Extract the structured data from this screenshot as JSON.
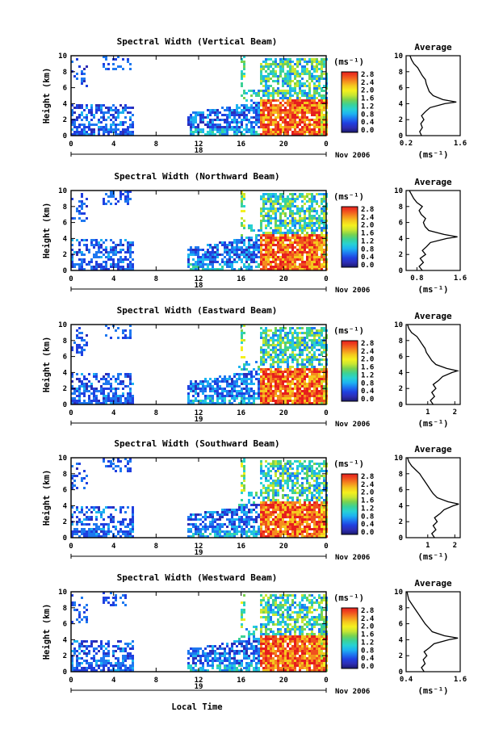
{
  "figure": {
    "xlabel": "Local Time",
    "date_label": "Nov 2006",
    "colorbar_unit": "(ms⁻¹)",
    "colorbar_ticks": [
      "0.0",
      "0.4",
      "0.8",
      "1.2",
      "1.6",
      "2.0",
      "2.4",
      "2.8"
    ],
    "avg_title": "Average",
    "avg_unit": "(ms⁻¹)",
    "ylabel": "Height (km)",
    "colorscale": [
      "#1a1a6e",
      "#2d2db4",
      "#2040e0",
      "#1e78f0",
      "#1eb4f0",
      "#28d2d2",
      "#3cd296",
      "#78d250",
      "#c8e632",
      "#f5f01e",
      "#f5c81e",
      "#f58c1e",
      "#f0501e",
      "#e61e1e"
    ]
  },
  "chart_data": [
    {
      "type": "heatmap",
      "title": "Spectral Width (Vertical Beam)",
      "xlabel": "Local Time",
      "ylabel": "Height (km)",
      "x_ticks": [
        "0",
        "4",
        "8",
        "12",
        "16",
        "20",
        "0"
      ],
      "x_range": [
        0,
        24
      ],
      "y_range": [
        0,
        10
      ],
      "y_ticks": [
        "0",
        "2",
        "4",
        "6",
        "8",
        "10"
      ],
      "day_label": "18",
      "z_unit": "(ms⁻¹)",
      "z_range": [
        0,
        2.8
      ],
      "average_profile": {
        "title": "Average",
        "xlabel": "(ms⁻¹)",
        "x_ticks": [
          "0.2",
          "1.6"
        ],
        "x_range": [
          0.2,
          1.6
        ],
        "heights": [
          0,
          0.5,
          1,
          1.5,
          2,
          2.5,
          3,
          3.5,
          4,
          4.2,
          4.5,
          5,
          5.5,
          6,
          6.5,
          7,
          7.5,
          8,
          8.5,
          9,
          9.5,
          10
        ],
        "values": [
          0.6,
          0.55,
          0.62,
          0.58,
          0.66,
          0.6,
          0.7,
          0.82,
          1.2,
          1.5,
          1.15,
          0.9,
          0.8,
          0.76,
          0.72,
          0.7,
          0.62,
          0.56,
          0.5,
          0.4,
          0.34,
          0.3
        ]
      }
    },
    {
      "type": "heatmap",
      "title": "Spectral Width (Northward Beam)",
      "xlabel": "Local Time",
      "ylabel": "Height (km)",
      "x_ticks": [
        "0",
        "4",
        "8",
        "12",
        "16",
        "20",
        "0"
      ],
      "x_range": [
        0,
        24
      ],
      "y_range": [
        0,
        10
      ],
      "y_ticks": [
        "0",
        "2",
        "4",
        "6",
        "8",
        "10"
      ],
      "day_label": "18",
      "z_unit": "(ms⁻¹)",
      "z_range": [
        0,
        2.8
      ],
      "average_profile": {
        "title": "Average",
        "xlabel": "(ms⁻¹)",
        "x_ticks": [
          "0.8",
          "1.6"
        ],
        "x_range": [
          0.6,
          1.6
        ],
        "heights": [
          0,
          0.5,
          1,
          1.5,
          2,
          2.5,
          3,
          3.5,
          4,
          4.2,
          4.5,
          5,
          5.5,
          6,
          6.5,
          7,
          7.5,
          8,
          8.5,
          9,
          9.5,
          10
        ],
        "values": [
          0.9,
          0.84,
          0.92,
          0.86,
          0.96,
          0.9,
          0.98,
          1.05,
          1.35,
          1.55,
          1.3,
          1.02,
          0.95,
          0.92,
          0.96,
          0.88,
          0.84,
          0.9,
          0.8,
          0.74,
          0.7,
          0.66
        ]
      }
    },
    {
      "type": "heatmap",
      "title": "Spectral Width (Eastward Beam)",
      "xlabel": "Local Time",
      "ylabel": "Height (km)",
      "x_ticks": [
        "0",
        "4",
        "8",
        "12",
        "16",
        "20",
        "0"
      ],
      "x_range": [
        0,
        24
      ],
      "y_range": [
        0,
        10
      ],
      "y_ticks": [
        "0",
        "2",
        "4",
        "6",
        "8",
        "10"
      ],
      "day_label": "19",
      "z_unit": "(ms⁻¹)",
      "z_range": [
        0,
        2.8
      ],
      "average_profile": {
        "title": "Average",
        "xlabel": "(ms⁻¹)",
        "x_ticks": [
          "1",
          "2"
        ],
        "x_range": [
          0.2,
          2.2
        ],
        "heights": [
          0,
          0.5,
          1,
          1.5,
          2,
          2.5,
          3,
          3.5,
          4,
          4.2,
          4.5,
          5,
          5.5,
          6,
          6.5,
          7,
          7.5,
          8,
          8.5,
          9,
          9.5,
          10
        ],
        "values": [
          1.2,
          1.1,
          1.25,
          1.15,
          1.3,
          1.2,
          1.4,
          1.55,
          1.9,
          2.1,
          1.7,
          1.3,
          1.15,
          1.05,
          0.95,
          0.9,
          0.8,
          0.7,
          0.6,
          0.4,
          0.3,
          0.25
        ]
      }
    },
    {
      "type": "heatmap",
      "title": "Spectral Width (Southward Beam)",
      "xlabel": "Local Time",
      "ylabel": "Height (km)",
      "x_ticks": [
        "0",
        "4",
        "8",
        "12",
        "16",
        "20",
        "0"
      ],
      "x_range": [
        0,
        24
      ],
      "y_range": [
        0,
        10
      ],
      "y_ticks": [
        "0",
        "2",
        "4",
        "6",
        "8",
        "10"
      ],
      "day_label": "19",
      "z_unit": "(ms⁻¹)",
      "z_range": [
        0,
        2.8
      ],
      "average_profile": {
        "title": "Average",
        "xlabel": "(ms⁻¹)",
        "x_ticks": [
          "1",
          "2"
        ],
        "x_range": [
          0.2,
          2.2
        ],
        "heights": [
          0,
          0.5,
          1,
          1.5,
          2,
          2.5,
          3,
          3.5,
          4,
          4.2,
          4.5,
          5,
          5.5,
          6,
          6.5,
          7,
          7.5,
          8,
          8.5,
          9,
          9.5,
          10
        ],
        "values": [
          1.25,
          1.15,
          1.3,
          1.2,
          1.35,
          1.25,
          1.45,
          1.6,
          1.95,
          2.15,
          1.75,
          1.35,
          1.2,
          1.1,
          1.0,
          0.9,
          0.8,
          0.7,
          0.55,
          0.4,
          0.3,
          0.25
        ]
      }
    },
    {
      "type": "heatmap",
      "title": "Spectral Width (Westward Beam)",
      "xlabel": "Local Time",
      "ylabel": "Height (km)",
      "x_ticks": [
        "0",
        "4",
        "8",
        "12",
        "16",
        "20",
        "0"
      ],
      "x_range": [
        0,
        24
      ],
      "y_range": [
        0,
        10
      ],
      "y_ticks": [
        "0",
        "2",
        "4",
        "6",
        "8",
        "10"
      ],
      "day_label": "19",
      "z_unit": "(ms⁻¹)",
      "z_range": [
        0,
        2.8
      ],
      "average_profile": {
        "title": "Average",
        "xlabel": "(ms⁻¹)",
        "x_ticks": [
          "0.4",
          "1.6"
        ],
        "x_range": [
          0.4,
          1.6
        ],
        "heights": [
          0,
          0.5,
          1,
          1.5,
          2,
          2.5,
          3,
          3.5,
          4,
          4.2,
          4.5,
          5,
          5.5,
          6,
          6.5,
          7,
          7.5,
          8,
          8.5,
          9,
          9.5,
          10
        ],
        "values": [
          0.8,
          0.74,
          0.82,
          0.78,
          0.86,
          0.8,
          0.92,
          1.02,
          1.35,
          1.55,
          1.25,
          0.98,
          0.9,
          0.82,
          0.76,
          0.7,
          0.64,
          0.58,
          0.52,
          0.46,
          0.44,
          0.42
        ]
      }
    }
  ]
}
